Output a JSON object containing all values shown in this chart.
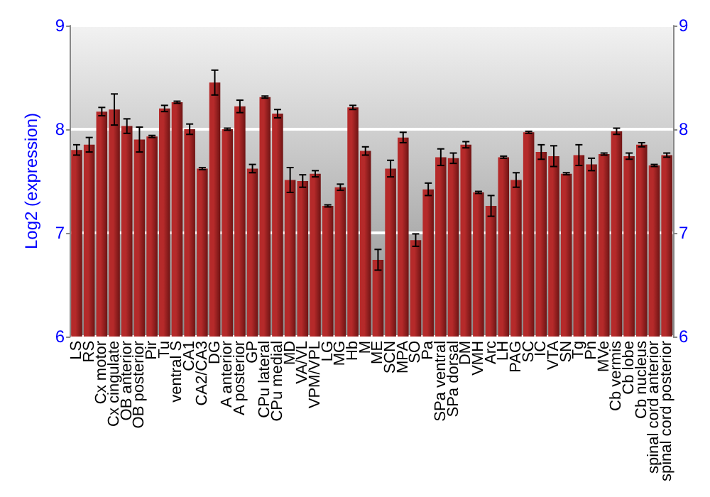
{
  "chart_data": {
    "type": "bar",
    "ylabel": "Log2 (expression)",
    "categories": [
      "LS",
      "RS",
      "Cx motor",
      "Cx cingulate",
      "OB anterior",
      "OB posterior",
      "Pir",
      "Tu",
      "ventral S",
      "CA1",
      "CA2/CA3",
      "DG",
      "A anterior",
      "A posterior",
      "GP",
      "CPu lateral",
      "CPu medial",
      "MD",
      "VA/VL",
      "VPM/VPL",
      "LG",
      "MG",
      "Hb",
      "M",
      "ME",
      "SCN",
      "MPA",
      "SO",
      "Pa",
      "SPa ventral",
      "SPa dorsal",
      "DM",
      "VMH",
      "Arc",
      "LH",
      "PAG",
      "SC",
      "IC",
      "VTA",
      "SN",
      "Tg",
      "Pn",
      "MVe",
      "Cb vermis",
      "Cb lobe",
      "Cb nucleus",
      "spinal cord anterior",
      "spinal cord posterior"
    ],
    "values": [
      7.8,
      7.85,
      8.17,
      8.19,
      8.03,
      7.9,
      7.93,
      8.2,
      8.26,
      8.0,
      7.62,
      8.45,
      8.0,
      8.22,
      7.62,
      8.31,
      8.15,
      7.51,
      7.5,
      7.57,
      7.26,
      7.44,
      8.21,
      7.79,
      6.74,
      7.62,
      7.92,
      6.93,
      7.42,
      7.73,
      7.72,
      7.85,
      7.39,
      7.26,
      7.73,
      7.51,
      7.97,
      7.78,
      7.74,
      7.57,
      7.75,
      7.66,
      7.76,
      7.98,
      7.74,
      7.85,
      7.65,
      7.75
    ],
    "errors": [
      0.05,
      0.07,
      0.04,
      0.15,
      0.07,
      0.12,
      0.01,
      0.03,
      0.01,
      0.05,
      0.01,
      0.12,
      0.01,
      0.06,
      0.04,
      0.01,
      0.04,
      0.12,
      0.06,
      0.03,
      0.01,
      0.03,
      0.02,
      0.04,
      0.1,
      0.08,
      0.05,
      0.06,
      0.06,
      0.08,
      0.05,
      0.03,
      0.01,
      0.1,
      0.01,
      0.07,
      0.01,
      0.07,
      0.1,
      0.01,
      0.1,
      0.06,
      0.01,
      0.03,
      0.03,
      0.02,
      0.01,
      0.02
    ],
    "color": "#b52a2a",
    "ylim": [
      6,
      9
    ],
    "yticks": [
      6,
      7,
      8,
      9
    ],
    "y2lim": [
      6,
      9
    ],
    "y2ticks": [
      6,
      7,
      8,
      9
    ],
    "grid": "y"
  }
}
